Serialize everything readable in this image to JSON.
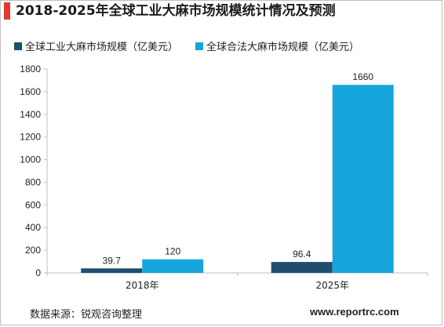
{
  "chart_data": {
    "type": "bar",
    "title": "2018-2025年全球工业大麻市场规模统计情况及预测",
    "categories": [
      "2018年",
      "2025年"
    ],
    "series": [
      {
        "name": "全球工业大麻市场规模（亿美元）",
        "values": [
          39.7,
          96.4
        ],
        "color": "#1f4e6e"
      },
      {
        "name": "全球合法大麻市场规模（亿美元）",
        "values": [
          120,
          1660
        ],
        "color": "#16a6dd"
      }
    ],
    "data_labels": [
      [
        "39.7",
        "96.4"
      ],
      [
        "120",
        "1660"
      ]
    ],
    "yticks": [
      "0",
      "200",
      "400",
      "600",
      "800",
      "1000",
      "1200",
      "1400",
      "1600",
      "1800"
    ],
    "ylim": [
      0,
      1800
    ],
    "grid": false,
    "legend_position": "top"
  },
  "footer": {
    "source": "数据来源：锐观咨询整理",
    "website": "www.reportrc.com"
  },
  "colors": {
    "title_accent": "#e03a2f"
  }
}
